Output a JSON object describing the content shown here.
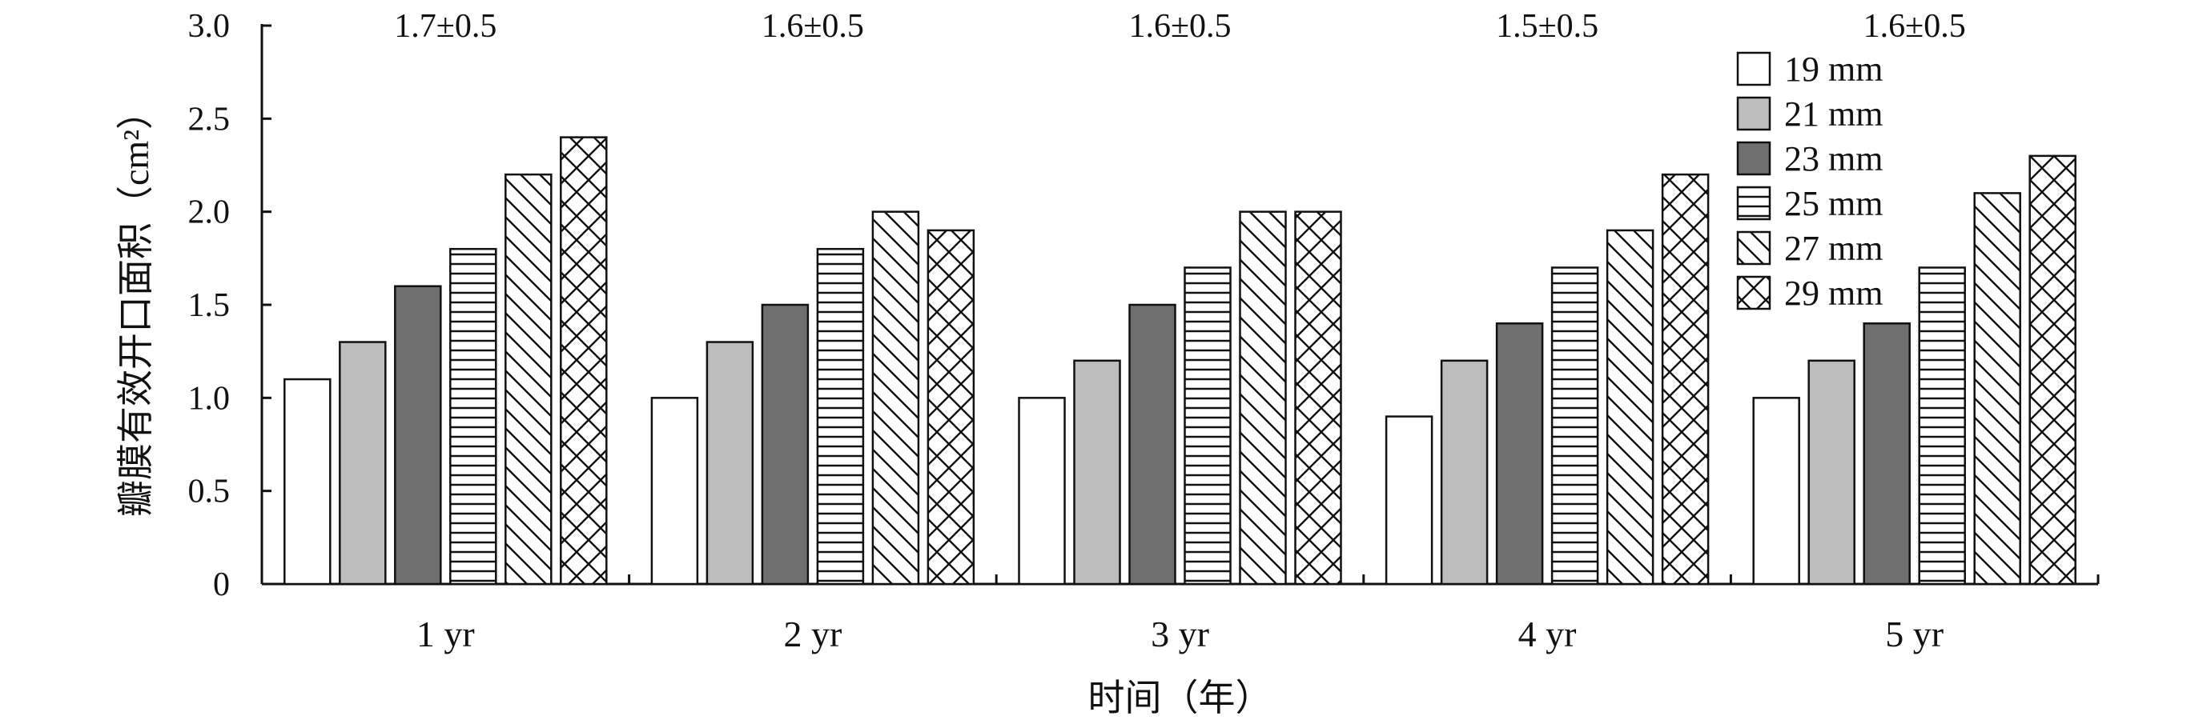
{
  "chart_data": {
    "type": "bar",
    "title": "",
    "xlabel": "时间（年）",
    "ylabel": "瓣膜有效开口面积（cm²）",
    "ylim": [
      0,
      3.0
    ],
    "yticks": [
      "0",
      "0.5",
      "1.0",
      "1.5",
      "2.0",
      "2.5",
      "3.0"
    ],
    "categories": [
      "1 yr",
      "2 yr",
      "3 yr",
      "4 yr",
      "5 yr"
    ],
    "annotations": [
      "1.7±0.5",
      "1.6±0.5",
      "1.6±0.5",
      "1.5±0.5",
      "1.6±0.5"
    ],
    "legend_position": "top-right",
    "grid": false,
    "series": [
      {
        "name": "19 mm",
        "fill": "white",
        "values": [
          1.1,
          1.0,
          1.0,
          0.9,
          1.0
        ]
      },
      {
        "name": "21 mm",
        "fill": "light-gray",
        "values": [
          1.3,
          1.3,
          1.2,
          1.2,
          1.2
        ]
      },
      {
        "name": "23 mm",
        "fill": "dark-gray",
        "values": [
          1.6,
          1.5,
          1.5,
          1.4,
          1.4
        ]
      },
      {
        "name": "25 mm",
        "fill": "horizontal-lines",
        "values": [
          1.8,
          1.8,
          1.7,
          1.7,
          1.7
        ]
      },
      {
        "name": "27 mm",
        "fill": "diagonal-lines",
        "values": [
          2.2,
          2.0,
          2.0,
          1.9,
          2.1
        ]
      },
      {
        "name": "29 mm",
        "fill": "crosshatch",
        "values": [
          2.4,
          1.9,
          2.0,
          2.2,
          2.3
        ]
      }
    ],
    "colors": {
      "axis": "#111111",
      "bar_stroke": "#111111",
      "white": "#ffffff",
      "light_gray": "#bdbdbd",
      "dark_gray": "#6f6f6f"
    }
  }
}
